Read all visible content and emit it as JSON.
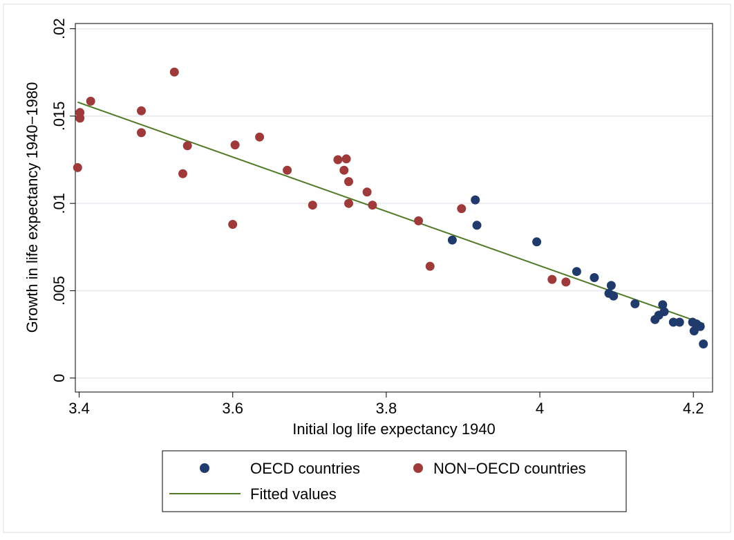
{
  "chart_data": {
    "type": "scatter",
    "title": "",
    "xlabel": "Initial log life expectancy 1940",
    "ylabel": "Growth in life expectancy 1940−1980",
    "xlim": [
      3.395,
      4.225
    ],
    "ylim": [
      -0.0008,
      0.0203
    ],
    "x_ticks": [
      3.4,
      3.6,
      3.8,
      4.0,
      4.2
    ],
    "x_tick_labels": [
      "3.4",
      "3.6",
      "3.8",
      "4",
      "4.2"
    ],
    "y_ticks": [
      0,
      0.005,
      0.01,
      0.015,
      0.02
    ],
    "y_tick_labels": [
      "0",
      ".005",
      ".01",
      ".015",
      ".02"
    ],
    "grid": true,
    "legend_position": "bottom",
    "series": [
      {
        "name": "OECD countries",
        "color": "#1f3a6b",
        "kind": "points",
        "points": [
          [
            3.886,
            0.0079
          ],
          [
            3.916,
            0.0102
          ],
          [
            3.918,
            0.00875
          ],
          [
            3.996,
            0.0078
          ],
          [
            4.048,
            0.0061
          ],
          [
            4.071,
            0.00575
          ],
          [
            4.09,
            0.00485
          ],
          [
            4.093,
            0.0053
          ],
          [
            4.096,
            0.0047
          ],
          [
            4.124,
            0.00425
          ],
          [
            4.15,
            0.00335
          ],
          [
            4.155,
            0.0036
          ],
          [
            4.16,
            0.0042
          ],
          [
            4.162,
            0.0038
          ],
          [
            4.174,
            0.0032
          ],
          [
            4.182,
            0.0032
          ],
          [
            4.199,
            0.0032
          ],
          [
            4.201,
            0.0027
          ],
          [
            4.204,
            0.0031
          ],
          [
            4.209,
            0.00295
          ],
          [
            4.213,
            0.00195
          ]
        ]
      },
      {
        "name": "NON−OECD countries",
        "color": "#9e3a3a",
        "kind": "points",
        "points": [
          [
            3.398,
            0.01205
          ],
          [
            3.401,
            0.0152
          ],
          [
            3.401,
            0.01488
          ],
          [
            3.415,
            0.01585
          ],
          [
            3.481,
            0.0153
          ],
          [
            3.481,
            0.01405
          ],
          [
            3.524,
            0.01752
          ],
          [
            3.535,
            0.0117
          ],
          [
            3.541,
            0.0133
          ],
          [
            3.6,
            0.0088
          ],
          [
            3.603,
            0.01335
          ],
          [
            3.635,
            0.0138
          ],
          [
            3.671,
            0.0119
          ],
          [
            3.704,
            0.0099
          ],
          [
            3.737,
            0.0125
          ],
          [
            3.745,
            0.0119
          ],
          [
            3.748,
            0.01255
          ],
          [
            3.751,
            0.01125
          ],
          [
            3.751,
            0.01
          ],
          [
            3.775,
            0.01065
          ],
          [
            3.782,
            0.0099
          ],
          [
            3.842,
            0.009
          ],
          [
            3.857,
            0.0064
          ],
          [
            3.898,
            0.0097
          ],
          [
            4.016,
            0.00565
          ],
          [
            4.034,
            0.0055
          ]
        ]
      },
      {
        "name": "Fitted values",
        "color": "#4f7a28",
        "kind": "line",
        "points": [
          [
            3.398,
            0.0158
          ],
          [
            4.214,
            0.0031
          ]
        ]
      }
    ]
  }
}
